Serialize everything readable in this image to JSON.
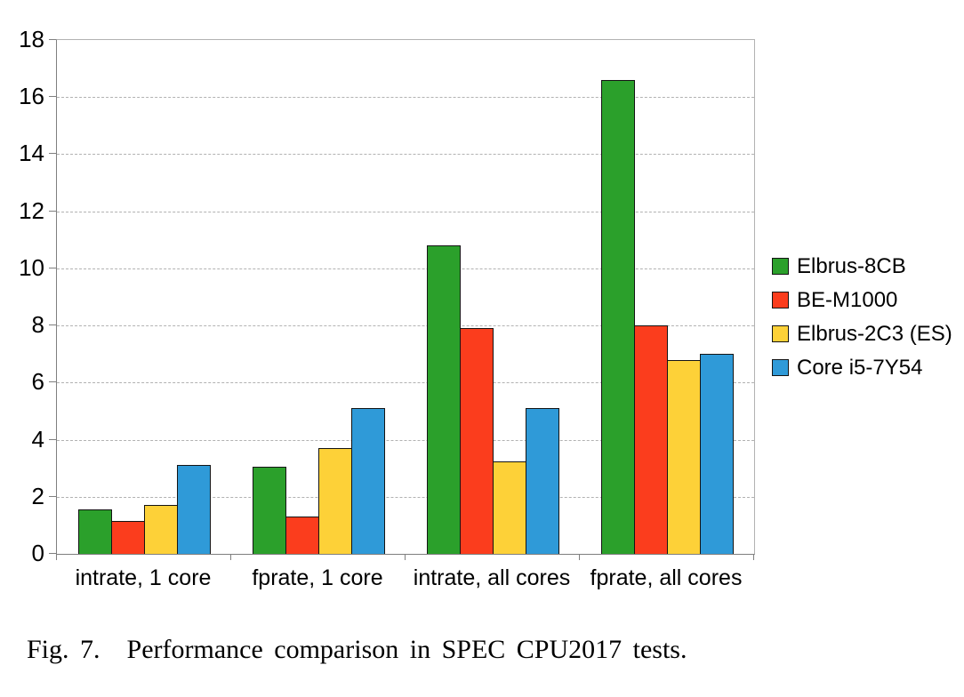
{
  "figure": {
    "caption": {
      "label": "Fig. 7.",
      "text": "Performance comparison in SPEC CPU2017 tests."
    }
  },
  "chart_data": {
    "type": "bar",
    "title": "",
    "xlabel": "",
    "ylabel": "",
    "categories": [
      "intrate, 1 core",
      "fprate, 1 core",
      "intrate, all cores",
      "fprate, all cores"
    ],
    "series": [
      {
        "name": "Elbrus-8CB",
        "color": "#2BA02B",
        "values": [
          1.55,
          3.05,
          10.8,
          16.6
        ]
      },
      {
        "name": "BE-M1000",
        "color": "#FB3D1D",
        "values": [
          1.15,
          1.3,
          7.9,
          8.0
        ]
      },
      {
        "name": "Elbrus-2C3 (ES)",
        "color": "#FDD138",
        "values": [
          1.7,
          3.7,
          3.25,
          6.8
        ]
      },
      {
        "name": "Core i5-7Y54",
        "color": "#2F9AD8",
        "values": [
          3.1,
          5.1,
          5.1,
          7.0
        ]
      }
    ],
    "ylim": [
      0,
      18
    ],
    "yticks": [
      0,
      2,
      4,
      6,
      8,
      10,
      12,
      14,
      16,
      18
    ],
    "grid": true,
    "gridline_style": "dashed",
    "legend_position": "right",
    "colors": {
      "axis": "#7f7f7f",
      "gridline": "#b2b2b2",
      "bar_border": "#141414",
      "background": "#ffffff"
    }
  }
}
